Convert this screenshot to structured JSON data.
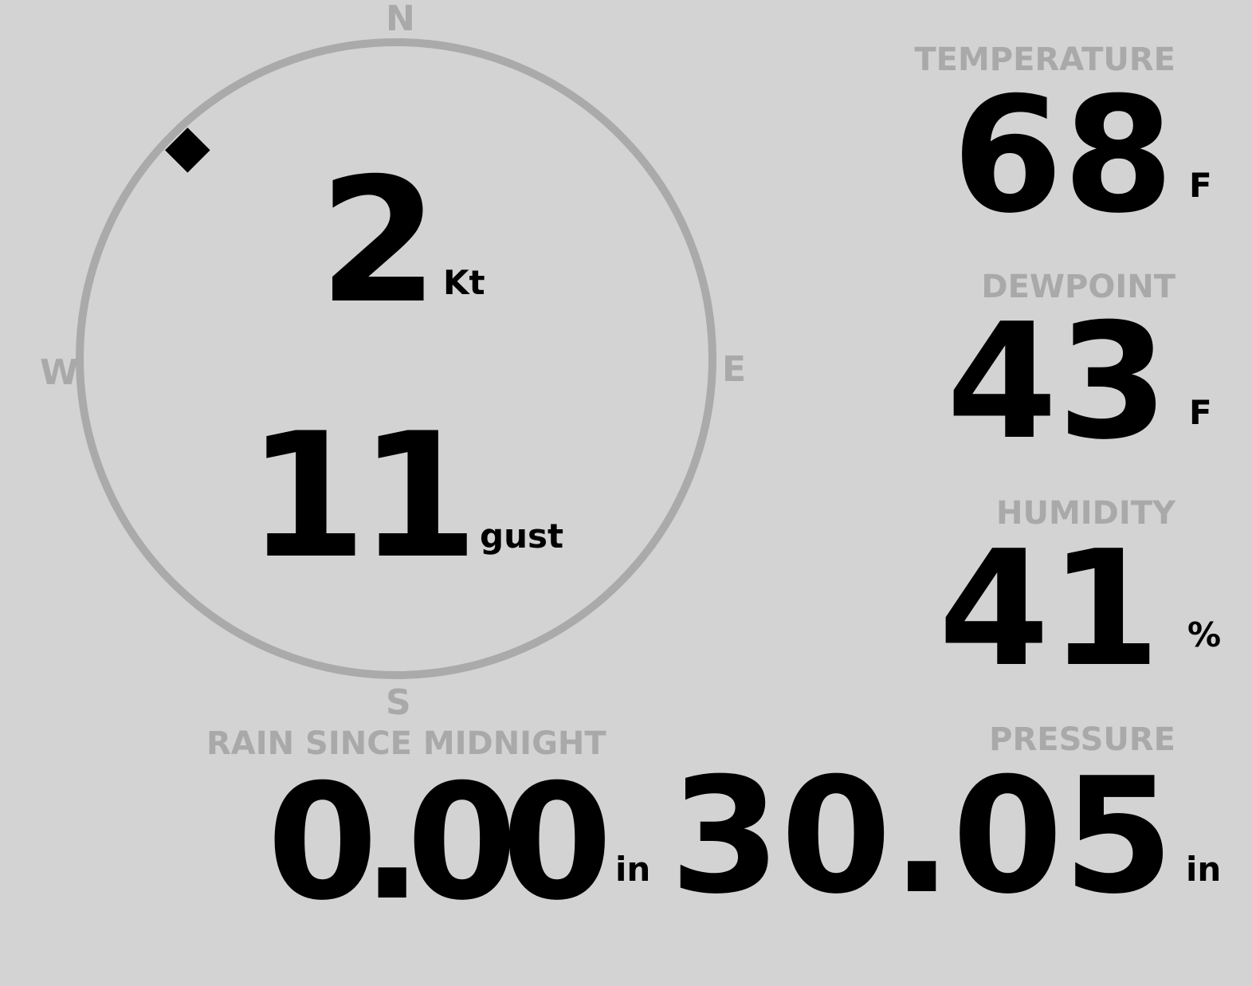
{
  "wind": {
    "cardinals": {
      "n": "N",
      "e": "E",
      "s": "S",
      "w": "W"
    },
    "direction_deg": 315,
    "speed": "2",
    "speed_unit": "Kt",
    "gust": "11",
    "gust_unit": "gust"
  },
  "colors": {
    "background": "#d3d3d3",
    "label": "#a9a9a9",
    "ring": "#aaaaaa",
    "value": "#000000"
  },
  "temperature": {
    "label": "TEMPERATURE",
    "value": "68",
    "unit": "F"
  },
  "dewpoint": {
    "label": "DEWPOINT",
    "value": "43",
    "unit": "F"
  },
  "humidity": {
    "label": "HUMIDITY",
    "value": "41",
    "unit": "%"
  },
  "rain": {
    "label": "RAIN SINCE MIDNIGHT",
    "value": "0.00",
    "unit": "in"
  },
  "pressure": {
    "label": "PRESSURE",
    "value": "30.05",
    "unit": "in"
  }
}
